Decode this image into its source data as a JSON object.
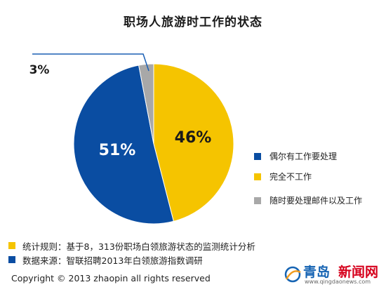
{
  "title": "职场人旅游时工作的状态",
  "chart_data": {
    "type": "pie",
    "title": "职场人旅游时工作的状态",
    "slices": [
      {
        "label": "完全不工作",
        "value": 46,
        "display": "46%",
        "color": "#f5c400"
      },
      {
        "label": "偶尔有工作要处理",
        "value": 51,
        "display": "51%",
        "color": "#0a4da2"
      },
      {
        "label": "随时要处理邮件以及工作",
        "value": 3,
        "display": "3%",
        "color": "#a8a8a8"
      }
    ],
    "start": "12 o'clock, clockwise",
    "unit": "%"
  },
  "legend": [
    {
      "label": "偶尔有工作要处理",
      "color": "#0a4da2"
    },
    {
      "label": "完全不工作",
      "color": "#f5c400"
    },
    {
      "label": "随时要处理邮件以及工作",
      "color": "#a8a8a8"
    }
  ],
  "notes": [
    {
      "text": "统计规则：基于8，313份职场白领旅游状态的监测统计分析",
      "color": "#f5c400"
    },
    {
      "text": "数据来源：智联招聘2013年白领旅游指数调研",
      "color": "#0a4da2"
    }
  ],
  "copyright": "Copyright © 2013 zhaopin all rights reserved",
  "watermark": {
    "name_part1": "青岛",
    "name_part2": "新闻网",
    "url": "www.qingdaonews.com"
  },
  "colors": {
    "accent_blue": "#0a4da2",
    "accent_yellow": "#f5c400",
    "accent_gray": "#a8a8a8",
    "callout_line": "#1a5fb4"
  }
}
